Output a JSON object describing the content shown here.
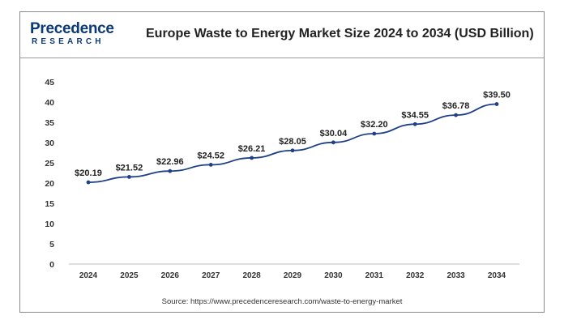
{
  "header": {
    "logo_primary": "Precedence",
    "logo_secondary": "RESEARCH",
    "title": "Europe Waste to Energy Market Size 2024 to 2034 (USD Billion)"
  },
  "footer": {
    "source": "Source: https://www.precedenceresearch.com/waste-to-energy-market"
  },
  "colors": {
    "line": "#1f3f8a",
    "brand": "#0b3a78",
    "logo_accent": "#e23b3b"
  },
  "chart_data": {
    "type": "line",
    "title": "Europe Waste to Energy Market Size 2024 to 2034 (USD Billion)",
    "xlabel": "",
    "ylabel": "",
    "categories": [
      "2024",
      "2025",
      "2026",
      "2027",
      "2028",
      "2029",
      "2030",
      "2031",
      "2032",
      "2033",
      "2034"
    ],
    "values": [
      20.19,
      21.52,
      22.96,
      24.52,
      26.21,
      28.05,
      30.04,
      32.2,
      34.55,
      36.78,
      39.5
    ],
    "data_labels": [
      "$20.19",
      "$21.52",
      "$22.96",
      "$24.52",
      "$26.21",
      "$28.05",
      "$30.04",
      "$32.20",
      "$34.55",
      "$36.78",
      "$39.50"
    ],
    "ylim": [
      0,
      45
    ],
    "yticks": [
      "0",
      "5",
      "10",
      "15",
      "20",
      "25",
      "30",
      "35",
      "40",
      "45"
    ],
    "grid": false,
    "legend": "none"
  }
}
